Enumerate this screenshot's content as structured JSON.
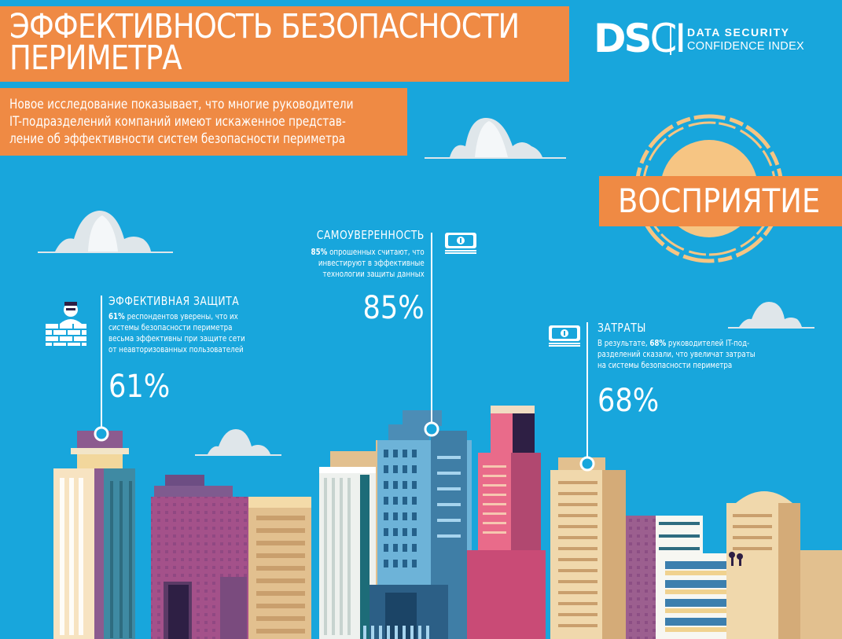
{
  "header": {
    "title_line1": "ЭФФЕКТИВНОСТЬ БЕЗОПАСНОСТИ",
    "title_line2": "ПЕРИМЕТРА",
    "subtitle_line1": "Новое исследование показывает, что многие руководители",
    "subtitle_line2": "IT-подразделений компаний имеют искаженное представ-",
    "subtitle_line3": "ление об эффективности систем безопасности периметра"
  },
  "logo": {
    "mark_bold": "DS",
    "mark_light": "CI",
    "line1": "DATA SECURITY",
    "line2": "CONFIDENCE INDEX"
  },
  "perception": {
    "label": "ВОСПРИЯТИЕ"
  },
  "sections": {
    "protection": {
      "heading": "ЭФФЕКТИВНАЯ ЗАЩИТА",
      "body_bold": "61%",
      "body_line1": " респондентов уверены, что их",
      "body_line2": "системы безопасности периметра",
      "body_line3": "весьма эффективны при защите сети",
      "body_line4": "от неавторизованных пользователей",
      "big": "61%",
      "icon": "firewall-icon"
    },
    "confidence": {
      "heading": "САМОУВЕРЕННОСТЬ",
      "body_bold": "85%",
      "body_line1": " опрошенных считают, что",
      "body_line2": "инвестируют в эффективные",
      "body_line3": "технологии защиты данных",
      "big": "85%",
      "icon": "money-icon"
    },
    "costs": {
      "heading": "ЗАТРАТЫ",
      "body_pre": "В результате, ",
      "body_bold": "68%",
      "body_line1": " руководителей IT-под-",
      "body_line2": "разделений сказали, что увеличат затраты",
      "body_line3": "на системы безопасности периметра",
      "big": "68%",
      "icon": "money-icon"
    }
  },
  "colors": {
    "sky": "#18a6dc",
    "accent": "#ef8a44",
    "sun": "#f6c583",
    "cloud": "#dfe6ea"
  }
}
